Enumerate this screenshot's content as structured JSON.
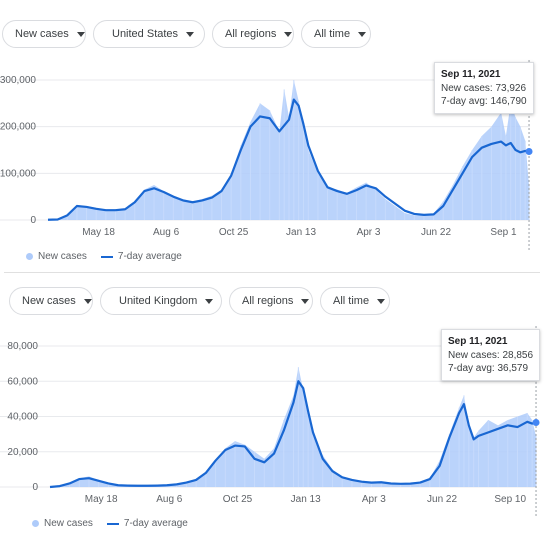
{
  "panels": [
    {
      "filters": {
        "metric": "New cases",
        "location": "United States",
        "regions": "All regions",
        "time": "All time"
      },
      "tooltip": {
        "date": "Sep 11, 2021",
        "new_cases": "New cases: 73,926",
        "avg": "7-day avg: 146,790"
      },
      "legend": {
        "bars": "New cases",
        "line": "7-day average"
      }
    },
    {
      "filters": {
        "metric": "New cases",
        "location": "United Kingdom",
        "regions": "All regions",
        "time": "All time"
      },
      "tooltip": {
        "date": "Sep 11, 2021",
        "new_cases": "New cases: 28,856",
        "avg": "7-day avg: 36,579"
      },
      "legend": {
        "bars": "New cases",
        "line": "7-day average"
      }
    }
  ],
  "colors": {
    "bars": "#aecbfa",
    "line": "#1967d2",
    "grid": "#e8eaed",
    "marker": "#4285f4"
  },
  "chart_data": [
    {
      "type": "bar",
      "title": "",
      "xlabel": "",
      "ylabel": "",
      "ylim": [
        0,
        300000
      ],
      "y_ticks": [
        0,
        100000,
        200000,
        300000
      ],
      "y_tick_labels": [
        "0",
        "100,000",
        "200,000",
        "300,000"
      ],
      "x_tick_labels": [
        "May 18",
        "Aug 6",
        "Oct 25",
        "Jan 13",
        "Apr 3",
        "Jun 22",
        "Sep 1"
      ],
      "x_tick_positions": [
        0.105,
        0.245,
        0.385,
        0.525,
        0.665,
        0.805,
        0.945
      ],
      "x_max_fraction": 0.998,
      "series": [
        {
          "name": "New cases",
          "kind": "bar",
          "x": [
            0.0,
            0.02,
            0.04,
            0.06,
            0.08,
            0.1,
            0.12,
            0.14,
            0.16,
            0.18,
            0.2,
            0.22,
            0.24,
            0.26,
            0.28,
            0.3,
            0.32,
            0.34,
            0.36,
            0.38,
            0.4,
            0.42,
            0.44,
            0.46,
            0.48,
            0.49,
            0.5,
            0.51,
            0.52,
            0.53,
            0.54,
            0.56,
            0.58,
            0.6,
            0.62,
            0.64,
            0.66,
            0.68,
            0.7,
            0.72,
            0.74,
            0.76,
            0.78,
            0.8,
            0.82,
            0.84,
            0.86,
            0.88,
            0.9,
            0.92,
            0.94,
            0.95,
            0.96,
            0.97,
            0.98,
            0.99,
            0.998
          ],
          "values": [
            500,
            1000,
            12000,
            32000,
            30000,
            26000,
            22000,
            22000,
            24000,
            40000,
            65000,
            75000,
            62000,
            52000,
            45000,
            40000,
            45000,
            52000,
            65000,
            100000,
            160000,
            210000,
            250000,
            235000,
            190000,
            280000,
            220000,
            300000,
            255000,
            200000,
            150000,
            100000,
            70000,
            65000,
            58000,
            70000,
            80000,
            65000,
            45000,
            30000,
            15000,
            10000,
            10000,
            14000,
            40000,
            75000,
            115000,
            150000,
            180000,
            200000,
            230000,
            180000,
            250000,
            220000,
            200000,
            170000,
            73926
          ]
        },
        {
          "name": "7-day average",
          "kind": "line",
          "x": [
            0.0,
            0.02,
            0.04,
            0.06,
            0.08,
            0.1,
            0.12,
            0.14,
            0.16,
            0.18,
            0.2,
            0.22,
            0.24,
            0.26,
            0.28,
            0.3,
            0.32,
            0.34,
            0.36,
            0.38,
            0.4,
            0.42,
            0.44,
            0.46,
            0.48,
            0.5,
            0.51,
            0.52,
            0.53,
            0.54,
            0.56,
            0.58,
            0.6,
            0.62,
            0.64,
            0.66,
            0.68,
            0.7,
            0.72,
            0.74,
            0.76,
            0.78,
            0.8,
            0.82,
            0.84,
            0.86,
            0.88,
            0.9,
            0.92,
            0.94,
            0.95,
            0.96,
            0.97,
            0.98,
            0.99,
            0.998
          ],
          "values": [
            500,
            1000,
            10000,
            30000,
            28000,
            24000,
            21000,
            21000,
            23000,
            38000,
            62000,
            68000,
            60000,
            50000,
            42000,
            38000,
            42000,
            48000,
            62000,
            95000,
            150000,
            200000,
            222000,
            218000,
            190000,
            215000,
            258000,
            245000,
            205000,
            160000,
            105000,
            70000,
            62000,
            56000,
            64000,
            74000,
            68000,
            50000,
            35000,
            20000,
            13000,
            11000,
            12000,
            30000,
            65000,
            100000,
            135000,
            155000,
            163000,
            168000,
            160000,
            165000,
            150000,
            145000,
            148000,
            146790
          ]
        }
      ]
    },
    {
      "type": "bar",
      "title": "",
      "xlabel": "",
      "ylabel": "",
      "ylim": [
        0,
        80000
      ],
      "y_ticks": [
        0,
        20000,
        40000,
        60000,
        80000
      ],
      "y_tick_labels": [
        "0",
        "20,000",
        "40,000",
        "60,000",
        "80,000"
      ],
      "x_tick_labels": [
        "May 18",
        "Aug 6",
        "Oct 25",
        "Jan 13",
        "Apr 3",
        "Jun 22",
        "Sep 10"
      ],
      "x_tick_positions": [
        0.105,
        0.245,
        0.385,
        0.525,
        0.665,
        0.805,
        0.945
      ],
      "x_max_fraction": 0.998,
      "series": [
        {
          "name": "New cases",
          "kind": "bar",
          "x": [
            0.0,
            0.02,
            0.04,
            0.06,
            0.08,
            0.1,
            0.12,
            0.14,
            0.16,
            0.18,
            0.2,
            0.22,
            0.24,
            0.26,
            0.28,
            0.3,
            0.32,
            0.34,
            0.36,
            0.38,
            0.4,
            0.42,
            0.44,
            0.46,
            0.48,
            0.5,
            0.51,
            0.52,
            0.53,
            0.54,
            0.56,
            0.58,
            0.6,
            0.62,
            0.64,
            0.66,
            0.68,
            0.7,
            0.72,
            0.74,
            0.76,
            0.78,
            0.8,
            0.82,
            0.84,
            0.85,
            0.86,
            0.87,
            0.88,
            0.9,
            0.92,
            0.94,
            0.96,
            0.98,
            0.99,
            0.998
          ],
          "values": [
            0,
            500,
            2000,
            5000,
            6000,
            4000,
            2000,
            1000,
            800,
            700,
            700,
            800,
            1000,
            1500,
            2500,
            4000,
            8000,
            15000,
            22000,
            26000,
            24000,
            20000,
            16000,
            22000,
            38000,
            52000,
            68000,
            55000,
            40000,
            30000,
            18000,
            10000,
            6000,
            4000,
            3000,
            2500,
            3000,
            2000,
            1800,
            2000,
            3000,
            5000,
            15000,
            30000,
            45000,
            52000,
            35000,
            28000,
            32000,
            38000,
            35000,
            38000,
            40000,
            42000,
            38000,
            28856
          ]
        },
        {
          "name": "7-day average",
          "kind": "line",
          "x": [
            0.0,
            0.02,
            0.04,
            0.06,
            0.08,
            0.1,
            0.12,
            0.14,
            0.16,
            0.18,
            0.2,
            0.22,
            0.24,
            0.26,
            0.28,
            0.3,
            0.32,
            0.34,
            0.36,
            0.38,
            0.4,
            0.42,
            0.44,
            0.46,
            0.48,
            0.5,
            0.51,
            0.52,
            0.53,
            0.54,
            0.56,
            0.58,
            0.6,
            0.62,
            0.64,
            0.66,
            0.68,
            0.7,
            0.72,
            0.74,
            0.76,
            0.78,
            0.8,
            0.82,
            0.84,
            0.85,
            0.86,
            0.87,
            0.88,
            0.9,
            0.92,
            0.94,
            0.96,
            0.98,
            0.99,
            0.998
          ],
          "values": [
            0,
            500,
            2000,
            4500,
            5000,
            3500,
            2000,
            1000,
            800,
            700,
            700,
            800,
            1000,
            1500,
            2500,
            4000,
            8000,
            15000,
            21000,
            23500,
            23000,
            16000,
            14000,
            19000,
            32000,
            48000,
            60000,
            56000,
            43000,
            31000,
            16000,
            9000,
            5500,
            4000,
            3000,
            2500,
            2700,
            2000,
            1800,
            1900,
            2500,
            4500,
            12000,
            28000,
            42000,
            47000,
            35000,
            27000,
            29000,
            31000,
            33000,
            35000,
            34000,
            37000,
            36000,
            36579
          ]
        }
      ]
    }
  ]
}
